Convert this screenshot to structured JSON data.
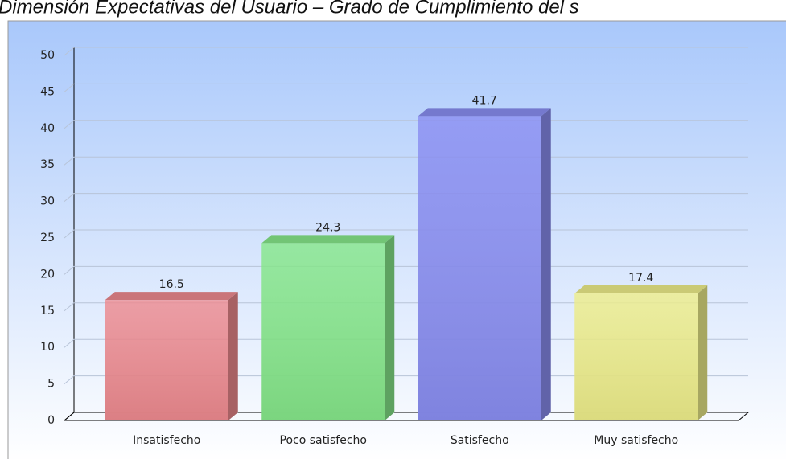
{
  "chart_data": {
    "type": "bar",
    "title": "Dimensión Expectativas del Usuario – Grado de Cumplimiento del s",
    "categories": [
      "Insatisfecho",
      "Poco satisfecho",
      "Satisfecho",
      "Muy satisfecho"
    ],
    "values": [
      16.5,
      24.3,
      41.7,
      17.4
    ],
    "colors": [
      "#ee8a8f",
      "#86e88a",
      "#8a8ef2",
      "#eeee8a"
    ],
    "ylim": [
      0,
      50
    ],
    "yticks": [
      0,
      5,
      10,
      15,
      20,
      25,
      30,
      35,
      40,
      45,
      50
    ],
    "grid": true
  }
}
